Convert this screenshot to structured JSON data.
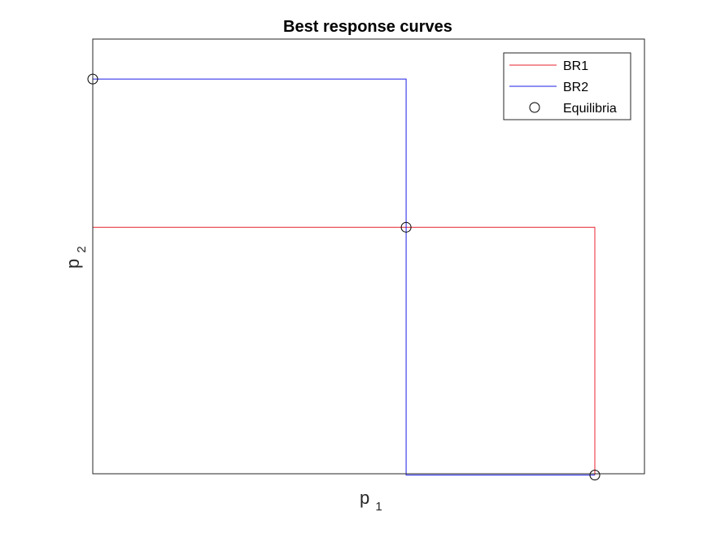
{
  "chart_data": {
    "type": "line",
    "title": "Best response curves",
    "xlabel": {
      "base": "p",
      "sub": "1"
    },
    "ylabel": {
      "base": "p",
      "sub": "2"
    },
    "xlim": [
      0,
      1
    ],
    "ylim": [
      0,
      1
    ],
    "grid": false,
    "ticks": false,
    "legend": {
      "placement": "top-right",
      "entries": [
        "BR1",
        "BR2",
        "Equilibria"
      ]
    },
    "series": [
      {
        "name": "BR1",
        "color": "#e8212d",
        "x": [
          0,
          0,
          0.91,
          0.91
        ],
        "y": [
          0.908,
          0.567,
          0.567,
          -0.003
        ]
      },
      {
        "name": "BR2",
        "color": "#1f1fe6",
        "x": [
          0,
          0.568,
          0.568,
          0.91
        ],
        "y": [
          0.908,
          0.908,
          -0.003,
          -0.003
        ]
      }
    ],
    "markers": {
      "name": "Equilibria",
      "color": "#000000",
      "points": [
        {
          "x": 0,
          "y": 0.908
        },
        {
          "x": 0.568,
          "y": 0.567
        },
        {
          "x": 0.91,
          "y": -0.003
        }
      ]
    }
  }
}
